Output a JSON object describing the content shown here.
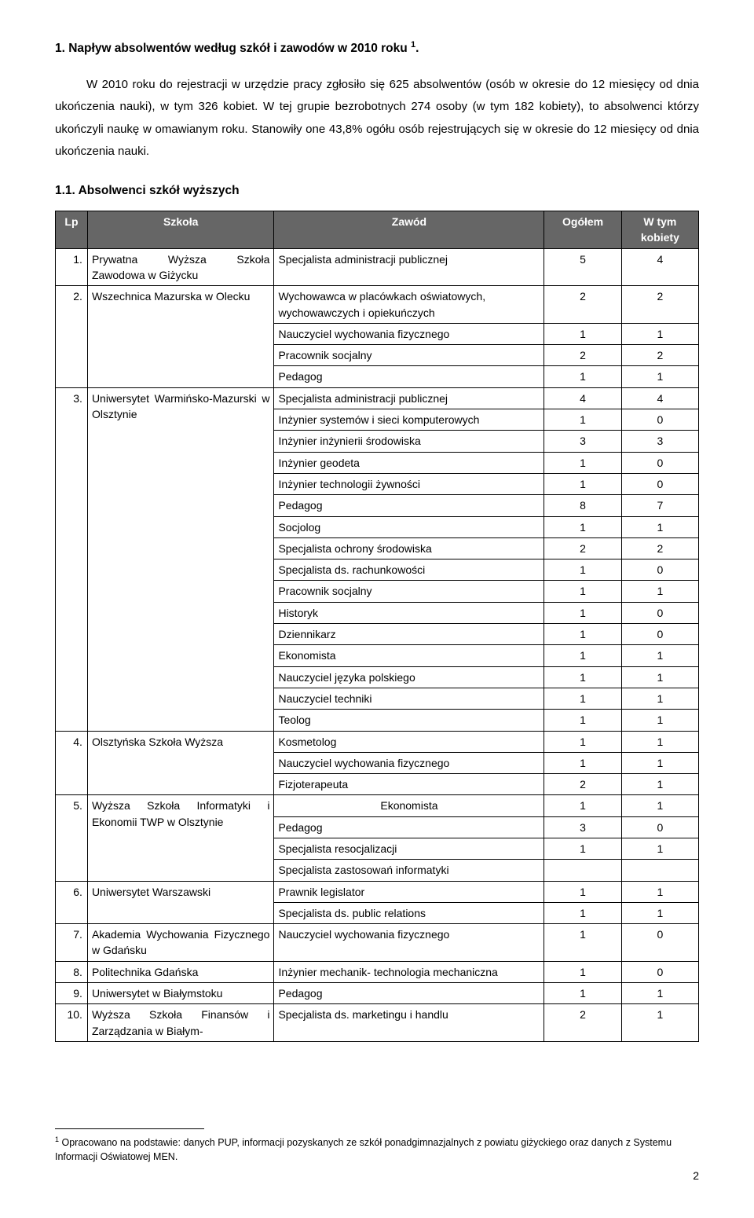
{
  "heading": "1. Napływ absolwentów według szkół i zawodów w 2010 roku ",
  "heading_sup": "1",
  "heading_tail": ".",
  "body": "W 2010 roku do rejestracji w urzędzie pracy zgłosiło się 625 absolwentów (osób w okresie do 12 miesięcy od dnia ukończenia nauki), w tym 326 kobiet. W tej grupie bezrobotnych 274 osoby (w tym 182 kobiety), to absolwenci którzy ukończyli naukę w omawianym roku. Stanowiły one  43,8% ogółu osób rejestrujących się w okresie do 12 miesięcy od dnia ukończenia nauki.",
  "subheading": "1.1. Absolwenci szkół wyższych",
  "columns": {
    "lp": "Lp",
    "szkola": "Szkoła",
    "zawod": "Zawód",
    "ogolem": "Ogółem",
    "kobiety": "W tym kobiety"
  },
  "rows": [
    {
      "lp": "1.",
      "school": "Prywatna Wyższa Szkoła Zawodowa w Giżycku",
      "subs": [
        {
          "z": "Specjalista administracji publicznej",
          "o": "5",
          "k": "4"
        }
      ]
    },
    {
      "lp": "2.",
      "school": "Wszechnica Mazurska w Olecku",
      "subs": [
        {
          "z": "Wychowawca w placówkach oświatowych, wychowawczych i opiekuńczych",
          "o": "2",
          "k": "2"
        },
        {
          "z": "Nauczyciel wychowania fizycznego",
          "o": "1",
          "k": "1"
        },
        {
          "z": "Pracownik socjalny",
          "o": "2",
          "k": "2"
        },
        {
          "z": "Pedagog",
          "o": "1",
          "k": "1"
        }
      ]
    },
    {
      "lp": "3.",
      "school": "Uniwersytet Warmińsko-Mazurski w Olsztynie",
      "subs": [
        {
          "z": "Specjalista administracji publicznej",
          "o": "4",
          "k": "4"
        },
        {
          "z": "Inżynier systemów i sieci komputerowych",
          "o": "1",
          "k": "0"
        },
        {
          "z": "Inżynier inżynierii środowiska",
          "o": "3",
          "k": "3"
        },
        {
          "z": "Inżynier geodeta",
          "o": "1",
          "k": "0"
        },
        {
          "z": "Inżynier technologii żywności",
          "o": "1",
          "k": "0"
        },
        {
          "z": "Pedagog",
          "o": "8",
          "k": "7"
        },
        {
          "z": "Socjolog",
          "o": "1",
          "k": "1"
        },
        {
          "z": "Specjalista ochrony środowiska",
          "o": "2",
          "k": "2"
        },
        {
          "z": "Specjalista ds. rachunkowości",
          "o": "1",
          "k": "0"
        },
        {
          "z": "Pracownik socjalny",
          "o": "1",
          "k": "1"
        },
        {
          "z": "Historyk",
          "o": "1",
          "k": "0"
        },
        {
          "z": "Dziennikarz",
          "o": "1",
          "k": "0"
        },
        {
          "z": "Ekonomista",
          "o": "1",
          "k": "1"
        },
        {
          "z": "Nauczyciel języka polskiego",
          "o": "1",
          "k": "1"
        },
        {
          "z": "Nauczyciel techniki",
          "o": "1",
          "k": "1"
        },
        {
          "z": "Teolog",
          "o": "1",
          "k": "1"
        }
      ]
    },
    {
      "lp": "4.",
      "school": "Olsztyńska Szkoła Wyższa",
      "subs": [
        {
          "z": "Kosmetolog",
          "o": "1",
          "k": "1"
        },
        {
          "z": "Nauczyciel wychowania fizycznego",
          "o": "1",
          "k": "1"
        },
        {
          "z": "Fizjoterapeuta",
          "o": "2",
          "k": "1"
        }
      ]
    },
    {
      "lp": "5.",
      "school": "Wyższa Szkoła Informatyki i Ekonomii TWP w Olsztynie",
      "subs": [
        {
          "z": "Ekonomista",
          "o": "1",
          "k": "1",
          "center": true
        },
        {
          "z": "Pedagog",
          "o": "3",
          "k": "0"
        },
        {
          "z": "Specjalista resocjalizacji",
          "o": "1",
          "k": "1"
        },
        {
          "z": "Specjalista zastosowań informatyki",
          "o": "",
          "k": ""
        }
      ]
    },
    {
      "lp": "6.",
      "school": "Uniwersytet Warszawski",
      "subs": [
        {
          "z": "Prawnik legislator",
          "o": "1",
          "k": "1"
        },
        {
          "z": "Specjalista ds. public relations",
          "o": "1",
          "k": "1"
        }
      ]
    },
    {
      "lp": "7.",
      "school": "Akademia Wychowania Fizycznego w Gdańsku",
      "subs": [
        {
          "z": "Nauczyciel wychowania fizycznego",
          "o": "1",
          "k": "0"
        }
      ]
    },
    {
      "lp": "8.",
      "school": "Politechnika Gdańska",
      "subs": [
        {
          "z": "Inżynier mechanik- technologia mechaniczna",
          "o": "1",
          "k": "0"
        }
      ]
    },
    {
      "lp": "9.",
      "school": "Uniwersytet w Białymstoku",
      "subs": [
        {
          "z": "Pedagog",
          "o": "1",
          "k": "1"
        }
      ]
    },
    {
      "lp": "10.",
      "school": "Wyższa Szkoła Finansów i Zarządzania w Białym-",
      "subs": [
        {
          "z": "Specjalista ds. marketingu i handlu",
          "o": "2",
          "k": "1"
        }
      ]
    }
  ],
  "footnote_sup": "1",
  "footnote": " Opracowano na podstawie: danych PUP, informacji pozyskanych ze szkół ponadgimnazjalnych z powiatu giżyckiego oraz danych z Systemu Informacji Oświatowej MEN.",
  "pagenum": "2"
}
